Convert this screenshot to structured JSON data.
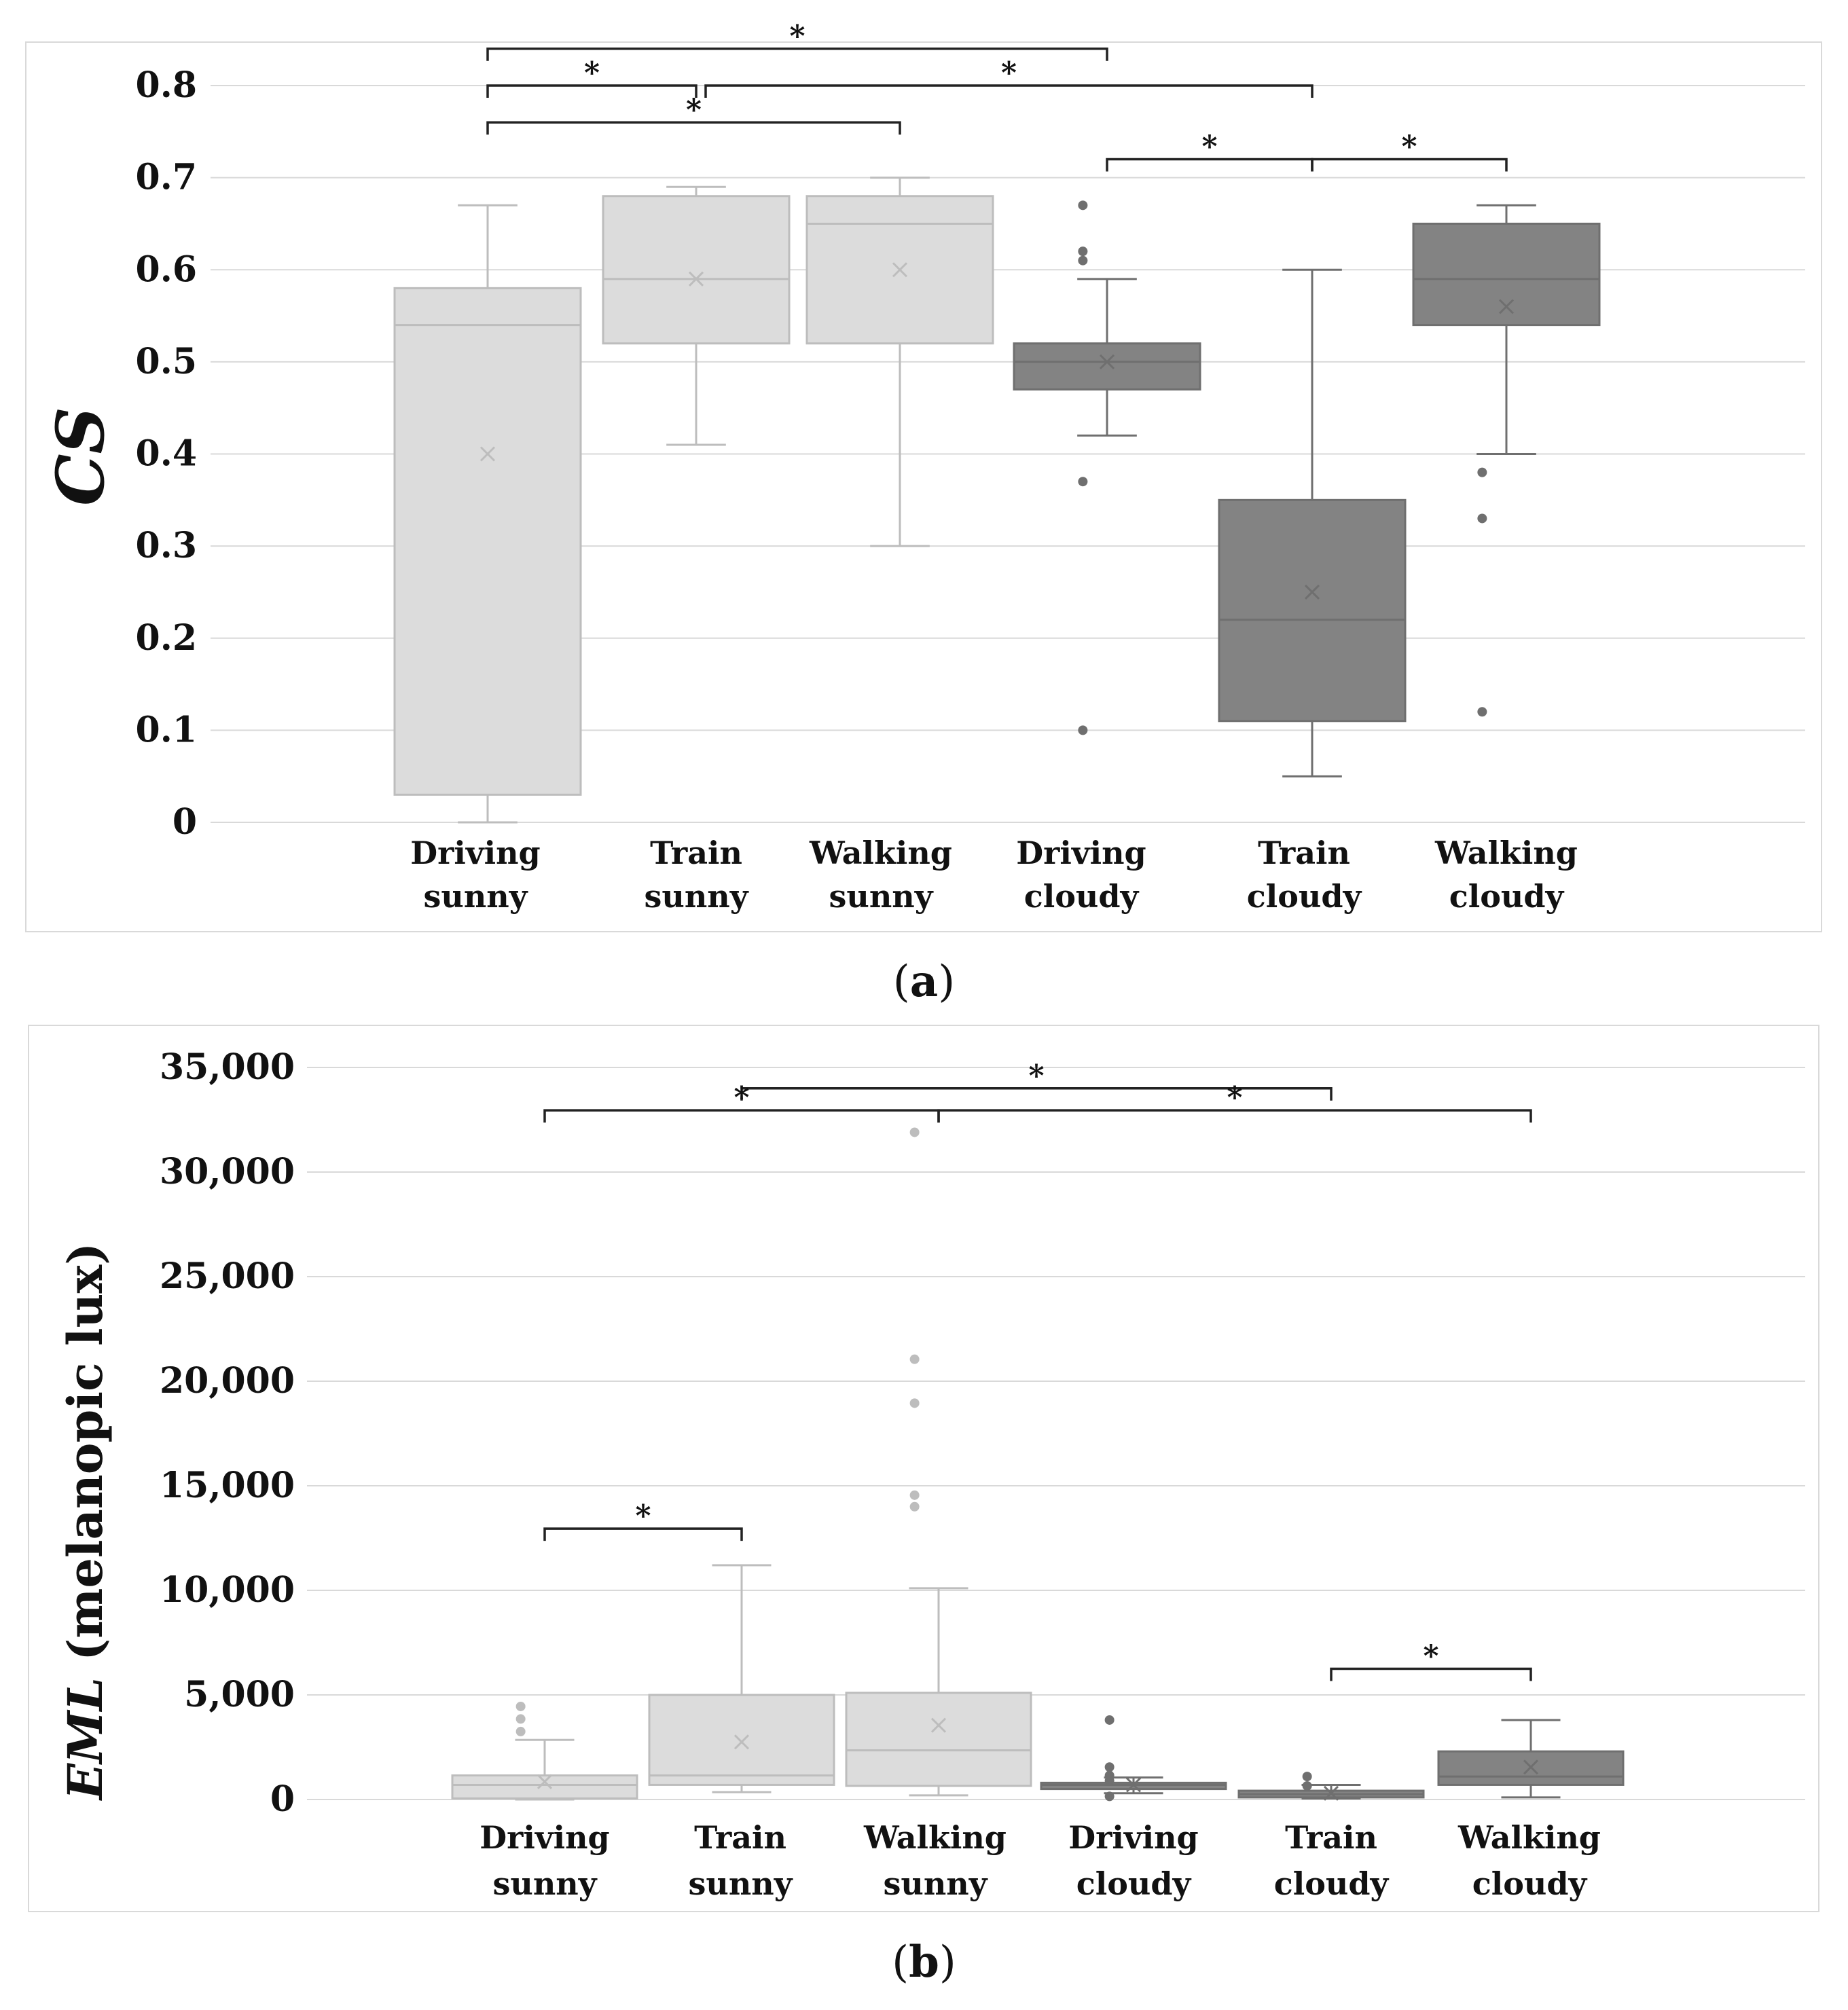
{
  "colors": {
    "sunny_fill": "#dcdcdc",
    "sunny_stroke": "#bdbdbd",
    "cloudy_fill": "#838383",
    "cloudy_stroke": "#6f6f6f",
    "sunny_outlier": "#bdbdbd",
    "cloudy_outlier": "#6f6f6f"
  },
  "panels": {
    "a": {
      "caption_open": "(",
      "caption_letter": "a",
      "caption_close": ")"
    },
    "b": {
      "caption_open": "(",
      "caption_letter": "b",
      "caption_close": ")"
    }
  },
  "chart_data": [
    {
      "type": "box",
      "panel": "a",
      "ylabel": "CS",
      "ylim": [
        0,
        0.8
      ],
      "y_ticks": [
        0,
        0.1,
        0.2,
        0.3,
        0.4,
        0.5,
        0.6,
        0.7,
        0.8
      ],
      "y_tick_labels": [
        "0",
        "0.1",
        "0.2",
        "0.3",
        "0.4",
        "0.5",
        "0.6",
        "0.7",
        "0.8"
      ],
      "grid": true,
      "categories": [
        {
          "line1": "Driving",
          "line2": "sunny",
          "group": "sunny",
          "min": 0.0,
          "q1": 0.03,
          "median": 0.54,
          "q3": 0.58,
          "max": 0.67,
          "mean": 0.4,
          "outliers": []
        },
        {
          "line1": "Train",
          "line2": "sunny",
          "group": "sunny",
          "min": 0.41,
          "q1": 0.52,
          "median": 0.59,
          "q3": 0.68,
          "max": 0.69,
          "mean": 0.59,
          "outliers": []
        },
        {
          "line1": "Walking",
          "line2": "sunny",
          "group": "sunny",
          "min": 0.3,
          "q1": 0.52,
          "median": 0.65,
          "q3": 0.68,
          "max": 0.7,
          "mean": 0.6,
          "outliers": []
        },
        {
          "line1": "Driving",
          "line2": "cloudy",
          "group": "cloudy",
          "min": 0.42,
          "q1": 0.47,
          "median": 0.5,
          "q3": 0.52,
          "max": 0.59,
          "mean": 0.5,
          "outliers": [
            0.67,
            0.62,
            0.61,
            0.37,
            0.1
          ]
        },
        {
          "line1": "Train",
          "line2": "cloudy",
          "group": "cloudy",
          "min": 0.05,
          "q1": 0.11,
          "median": 0.22,
          "q3": 0.35,
          "max": 0.6,
          "mean": 0.25,
          "outliers": []
        },
        {
          "line1": "Walking",
          "line2": "cloudy",
          "group": "cloudy",
          "min": 0.4,
          "q1": 0.54,
          "median": 0.59,
          "q3": 0.65,
          "max": 0.67,
          "mean": 0.56,
          "outliers": [
            0.38,
            0.33,
            0.12
          ]
        }
      ],
      "significance": [
        {
          "from": 0,
          "to": 3,
          "level": 0.84,
          "label": "*"
        },
        {
          "from": 0,
          "to": 1,
          "level": 0.8,
          "label": "*"
        },
        {
          "from": 1,
          "to": 4,
          "level": 0.8,
          "label": "*"
        },
        {
          "from": 0,
          "to": 2,
          "level": 0.76,
          "label": "*"
        },
        {
          "from": 3,
          "to": 4,
          "level": 0.72,
          "label": "*"
        },
        {
          "from": 4,
          "to": 5,
          "level": 0.72,
          "label": "*"
        }
      ]
    },
    {
      "type": "box",
      "panel": "b",
      "ylabel_italic": "EML",
      "ylabel_rest": " (melanopic lux)",
      "ylim": [
        0,
        35000
      ],
      "y_ticks": [
        0,
        5000,
        10000,
        15000,
        20000,
        25000,
        30000,
        35000
      ],
      "y_tick_labels": [
        "0",
        "5,000",
        "10,000",
        "15,000",
        "20,000",
        "25,000",
        "30,000",
        "35,000"
      ],
      "grid": true,
      "categories": [
        {
          "line1": "Driving",
          "line2": "sunny",
          "group": "sunny",
          "min": 0,
          "q1": 50,
          "median": 700,
          "q3": 1150,
          "max": 2850,
          "mean": 850,
          "outliers": [
            4450,
            3850,
            3250
          ]
        },
        {
          "line1": "Train",
          "line2": "sunny",
          "group": "sunny",
          "min": 350,
          "q1": 700,
          "median": 1150,
          "q3": 5000,
          "max": 11200,
          "mean": 2750,
          "outliers": []
        },
        {
          "line1": "Walking",
          "line2": "sunny",
          "group": "sunny",
          "min": 200,
          "q1": 650,
          "median": 2350,
          "q3": 5100,
          "max": 10100,
          "mean": 3550,
          "outliers": [
            31900,
            21050,
            18950,
            14550,
            14000
          ]
        },
        {
          "line1": "Driving",
          "line2": "cloudy",
          "group": "cloudy",
          "min": 300,
          "q1": 500,
          "median": 700,
          "q3": 800,
          "max": 1050,
          "mean": 700,
          "outliers": [
            3800,
            1550,
            1150,
            900,
            150
          ]
        },
        {
          "line1": "Train",
          "line2": "cloudy",
          "group": "cloudy",
          "min": 50,
          "q1": 100,
          "median": 250,
          "q3": 420,
          "max": 700,
          "mean": 300,
          "outliers": [
            1100,
            650
          ]
        },
        {
          "line1": "Walking",
          "line2": "cloudy",
          "group": "cloudy",
          "min": 100,
          "q1": 700,
          "median": 1100,
          "q3": 2300,
          "max": 3800,
          "mean": 1550,
          "outliers": []
        }
      ],
      "significance": [
        {
          "from": 1,
          "to": 4,
          "level": 34000,
          "label": "*"
        },
        {
          "from": 0,
          "to": 2,
          "level": 32950,
          "label": "*"
        },
        {
          "from": 2,
          "to": 5,
          "level": 32950,
          "label": "*"
        },
        {
          "from": 0,
          "to": 1,
          "level": 12950,
          "label": "*"
        },
        {
          "from": 4,
          "to": 5,
          "level": 6250,
          "label": "*"
        }
      ]
    }
  ]
}
